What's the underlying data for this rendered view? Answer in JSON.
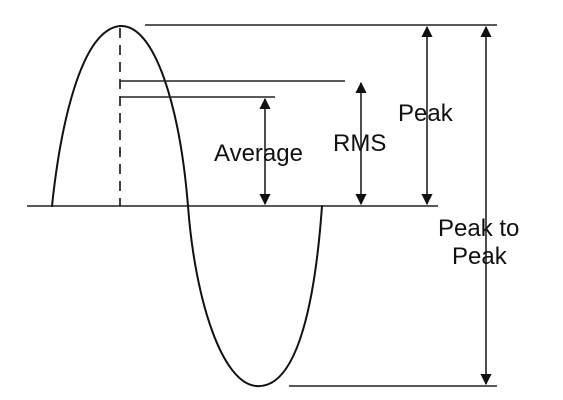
{
  "labels": {
    "average": "Average",
    "rms": "RMS",
    "peak": "Peak",
    "peak_to_peak_line1": "Peak to",
    "peak_to_peak_line2": "Peak"
  },
  "colors": {
    "line": "#111111",
    "background": "#ffffff"
  }
}
